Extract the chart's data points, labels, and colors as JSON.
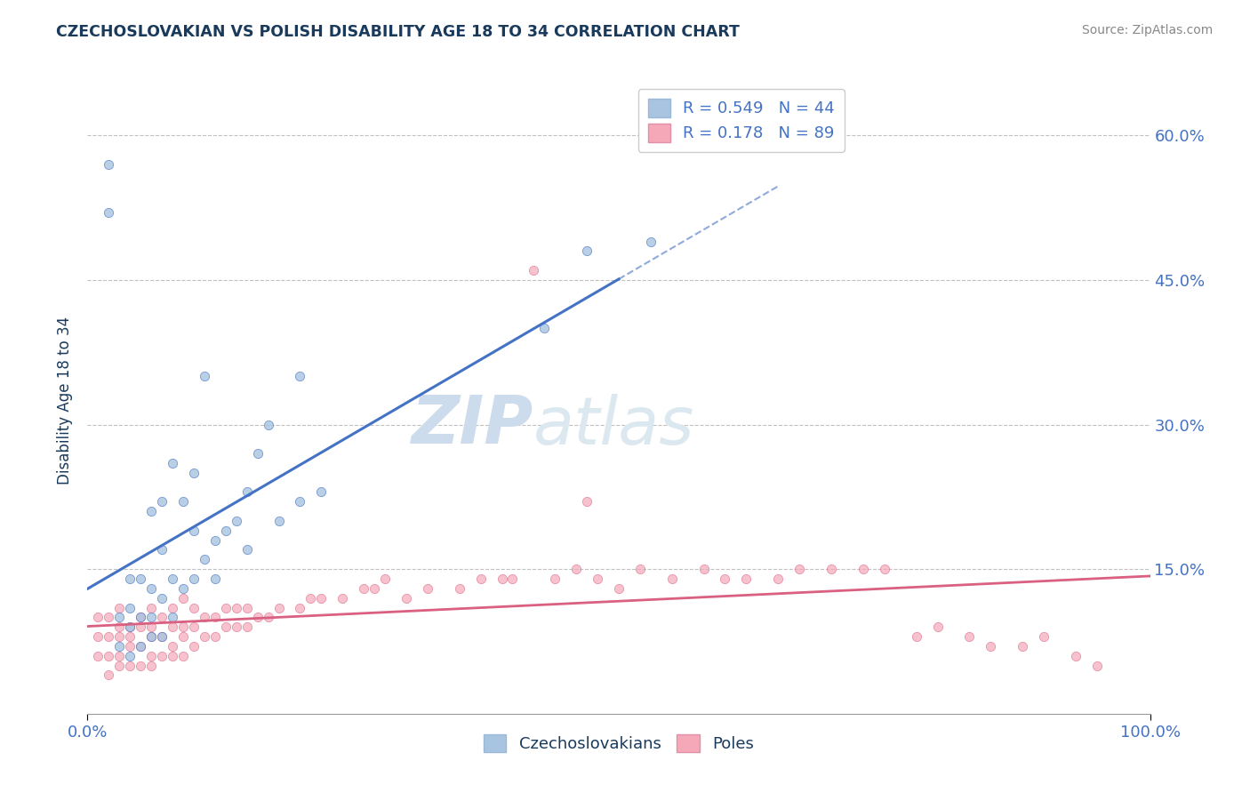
{
  "title": "CZECHOSLOVAKIAN VS POLISH DISABILITY AGE 18 TO 34 CORRELATION CHART",
  "source": "Source: ZipAtlas.com",
  "ylabel": "Disability Age 18 to 34",
  "xlim": [
    0,
    1.0
  ],
  "ylim": [
    0,
    0.65
  ],
  "xtick_labels": [
    "0.0%",
    "100.0%"
  ],
  "ytick_labels": [
    "15.0%",
    "30.0%",
    "45.0%",
    "60.0%"
  ],
  "ytick_values": [
    0.15,
    0.3,
    0.45,
    0.6
  ],
  "legend_r_czech": "R = 0.549",
  "legend_n_czech": "N = 44",
  "legend_r_polish": "R = 0.178",
  "legend_n_polish": "N = 89",
  "color_czech": "#a8c4e0",
  "color_polish": "#f4a8b8",
  "color_line_czech": "#4472c4",
  "color_line_polish": "#d96080",
  "color_title": "#1a3a5c",
  "background_color": "#ffffff",
  "watermark_color": "#ccdcec",
  "czech_x": [
    0.02,
    0.02,
    0.03,
    0.03,
    0.04,
    0.04,
    0.04,
    0.04,
    0.05,
    0.05,
    0.05,
    0.06,
    0.06,
    0.06,
    0.06,
    0.07,
    0.07,
    0.07,
    0.07,
    0.08,
    0.08,
    0.08,
    0.09,
    0.09,
    0.1,
    0.1,
    0.1,
    0.11,
    0.11,
    0.12,
    0.12,
    0.13,
    0.14,
    0.15,
    0.15,
    0.16,
    0.17,
    0.18,
    0.2,
    0.2,
    0.22,
    0.43,
    0.47,
    0.53
  ],
  "czech_y": [
    0.52,
    0.57,
    0.07,
    0.1,
    0.06,
    0.09,
    0.11,
    0.14,
    0.07,
    0.1,
    0.14,
    0.08,
    0.1,
    0.13,
    0.21,
    0.08,
    0.12,
    0.17,
    0.22,
    0.1,
    0.14,
    0.26,
    0.13,
    0.22,
    0.14,
    0.19,
    0.25,
    0.16,
    0.35,
    0.14,
    0.18,
    0.19,
    0.2,
    0.17,
    0.23,
    0.27,
    0.3,
    0.2,
    0.35,
    0.22,
    0.23,
    0.4,
    0.48,
    0.49
  ],
  "polish_x": [
    0.01,
    0.01,
    0.01,
    0.02,
    0.02,
    0.02,
    0.02,
    0.03,
    0.03,
    0.03,
    0.03,
    0.03,
    0.04,
    0.04,
    0.04,
    0.04,
    0.05,
    0.05,
    0.05,
    0.05,
    0.06,
    0.06,
    0.06,
    0.06,
    0.06,
    0.07,
    0.07,
    0.07,
    0.08,
    0.08,
    0.08,
    0.08,
    0.09,
    0.09,
    0.09,
    0.09,
    0.1,
    0.1,
    0.1,
    0.11,
    0.11,
    0.12,
    0.12,
    0.13,
    0.13,
    0.14,
    0.14,
    0.15,
    0.15,
    0.16,
    0.17,
    0.18,
    0.2,
    0.21,
    0.22,
    0.24,
    0.26,
    0.27,
    0.28,
    0.3,
    0.32,
    0.35,
    0.37,
    0.39,
    0.4,
    0.42,
    0.44,
    0.46,
    0.47,
    0.48,
    0.5,
    0.52,
    0.55,
    0.58,
    0.6,
    0.62,
    0.65,
    0.67,
    0.7,
    0.73,
    0.75,
    0.78,
    0.8,
    0.83,
    0.85,
    0.88,
    0.9,
    0.93,
    0.95
  ],
  "polish_y": [
    0.06,
    0.08,
    0.1,
    0.04,
    0.06,
    0.08,
    0.1,
    0.05,
    0.06,
    0.08,
    0.09,
    0.11,
    0.05,
    0.07,
    0.08,
    0.09,
    0.05,
    0.07,
    0.09,
    0.1,
    0.05,
    0.06,
    0.08,
    0.09,
    0.11,
    0.06,
    0.08,
    0.1,
    0.06,
    0.07,
    0.09,
    0.11,
    0.06,
    0.08,
    0.09,
    0.12,
    0.07,
    0.09,
    0.11,
    0.08,
    0.1,
    0.08,
    0.1,
    0.09,
    0.11,
    0.09,
    0.11,
    0.09,
    0.11,
    0.1,
    0.1,
    0.11,
    0.11,
    0.12,
    0.12,
    0.12,
    0.13,
    0.13,
    0.14,
    0.12,
    0.13,
    0.13,
    0.14,
    0.14,
    0.14,
    0.46,
    0.14,
    0.15,
    0.22,
    0.14,
    0.13,
    0.15,
    0.14,
    0.15,
    0.14,
    0.14,
    0.14,
    0.15,
    0.15,
    0.15,
    0.15,
    0.08,
    0.09,
    0.08,
    0.07,
    0.07,
    0.08,
    0.06,
    0.05
  ]
}
